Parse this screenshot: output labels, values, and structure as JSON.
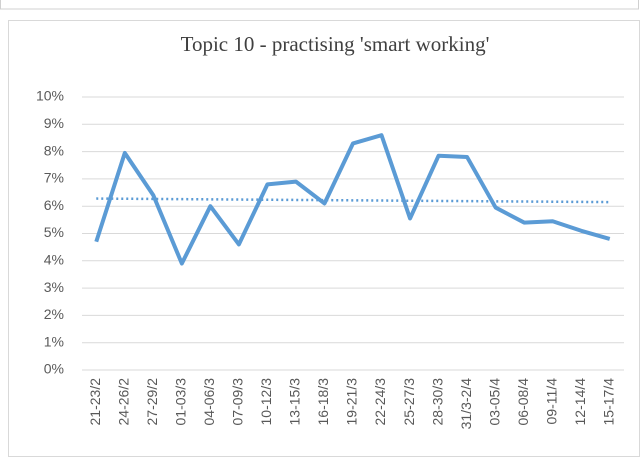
{
  "chart_data": {
    "type": "line",
    "title": "Topic 10 - practising 'smart working'",
    "categories": [
      "21-23/2",
      "24-26/2",
      "27-29/2",
      "01-03/3",
      "04-06/3",
      "07-09/3",
      "10-12/3",
      "13-15/3",
      "16-18/3",
      "19-21/3",
      "22-24/3",
      "25-27/3",
      "28-30/3",
      "31/3-2/4",
      "03-05/4",
      "06-08/4",
      "09-11/4",
      "12-14/4",
      "15-17/4"
    ],
    "values": [
      4.7,
      7.95,
      6.4,
      3.9,
      6.0,
      4.6,
      6.8,
      6.9,
      6.1,
      8.3,
      8.6,
      5.55,
      7.85,
      7.8,
      5.95,
      5.4,
      5.45,
      5.1,
      4.8
    ],
    "color": "#5b9bd5",
    "trendline": [
      6.28,
      6.15
    ],
    "ylim": [
      0,
      10
    ],
    "yticks": [
      {
        "value": 0,
        "label": "0%"
      },
      {
        "value": 1,
        "label": "1%"
      },
      {
        "value": 2,
        "label": "2%"
      },
      {
        "value": 3,
        "label": "3%"
      },
      {
        "value": 4,
        "label": "4%"
      },
      {
        "value": 5,
        "label": "5%"
      },
      {
        "value": 6,
        "label": "6%"
      },
      {
        "value": 7,
        "label": "7%"
      },
      {
        "value": 8,
        "label": "8%"
      },
      {
        "value": 9,
        "label": "9%"
      },
      {
        "value": 10,
        "label": "10%"
      }
    ],
    "grid": true
  }
}
